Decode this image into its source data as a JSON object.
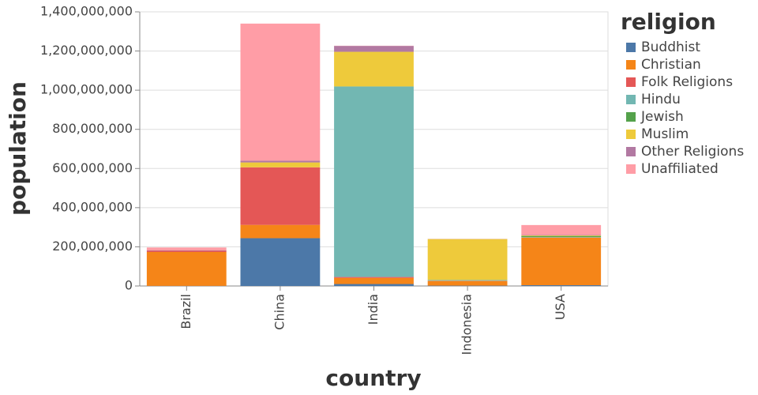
{
  "chart_data": {
    "type": "stacked_bar",
    "x_label": "country",
    "y_label": "population",
    "legend_title": "religion",
    "categories": [
      "Brazil",
      "China",
      "India",
      "Indonesia",
      "USA"
    ],
    "series": [
      {
        "name": "Buddhist",
        "color": "#4c78a8",
        "values": [
          500000,
          244000000,
          10000000,
          1700000,
          4000000
        ]
      },
      {
        "name": "Christian",
        "color": "#f58518",
        "values": [
          173000000,
          68000000,
          31000000,
          24000000,
          243000000
        ]
      },
      {
        "name": "Folk Religions",
        "color": "#e45756",
        "values": [
          6000000,
          294000000,
          5000000,
          1000000,
          600000
        ]
      },
      {
        "name": "Hindu",
        "color": "#72b7b2",
        "values": [
          0,
          0,
          973000000,
          4000000,
          1800000
        ]
      },
      {
        "name": "Jewish",
        "color": "#54a24b",
        "values": [
          100000,
          0,
          0,
          0,
          6000000
        ]
      },
      {
        "name": "Muslim",
        "color": "#eeca3b",
        "values": [
          0,
          25000000,
          177000000,
          209000000,
          3000000
        ]
      },
      {
        "name": "Other Religions",
        "color": "#b279a2",
        "values": [
          2000000,
          9000000,
          30000000,
          500000,
          1800000
        ]
      },
      {
        "name": "Unaffiliated",
        "color": "#ff9da6",
        "values": [
          15000000,
          700000000,
          1000000,
          300000,
          51000000
        ]
      }
    ],
    "ylim": [
      0,
      1400000000
    ],
    "yticks": [
      {
        "value": 0,
        "label": "0"
      },
      {
        "value": 200000000,
        "label": "200,000,000"
      },
      {
        "value": 400000000,
        "label": "400,000,000"
      },
      {
        "value": 600000000,
        "label": "600,000,000"
      },
      {
        "value": 800000000,
        "label": "800,000,000"
      },
      {
        "value": 1000000000,
        "label": "1,000,000,000"
      },
      {
        "value": 1200000000,
        "label": "1,200,000,000"
      },
      {
        "value": 1400000000,
        "label": "1,400,000,000"
      }
    ],
    "grid": true
  }
}
